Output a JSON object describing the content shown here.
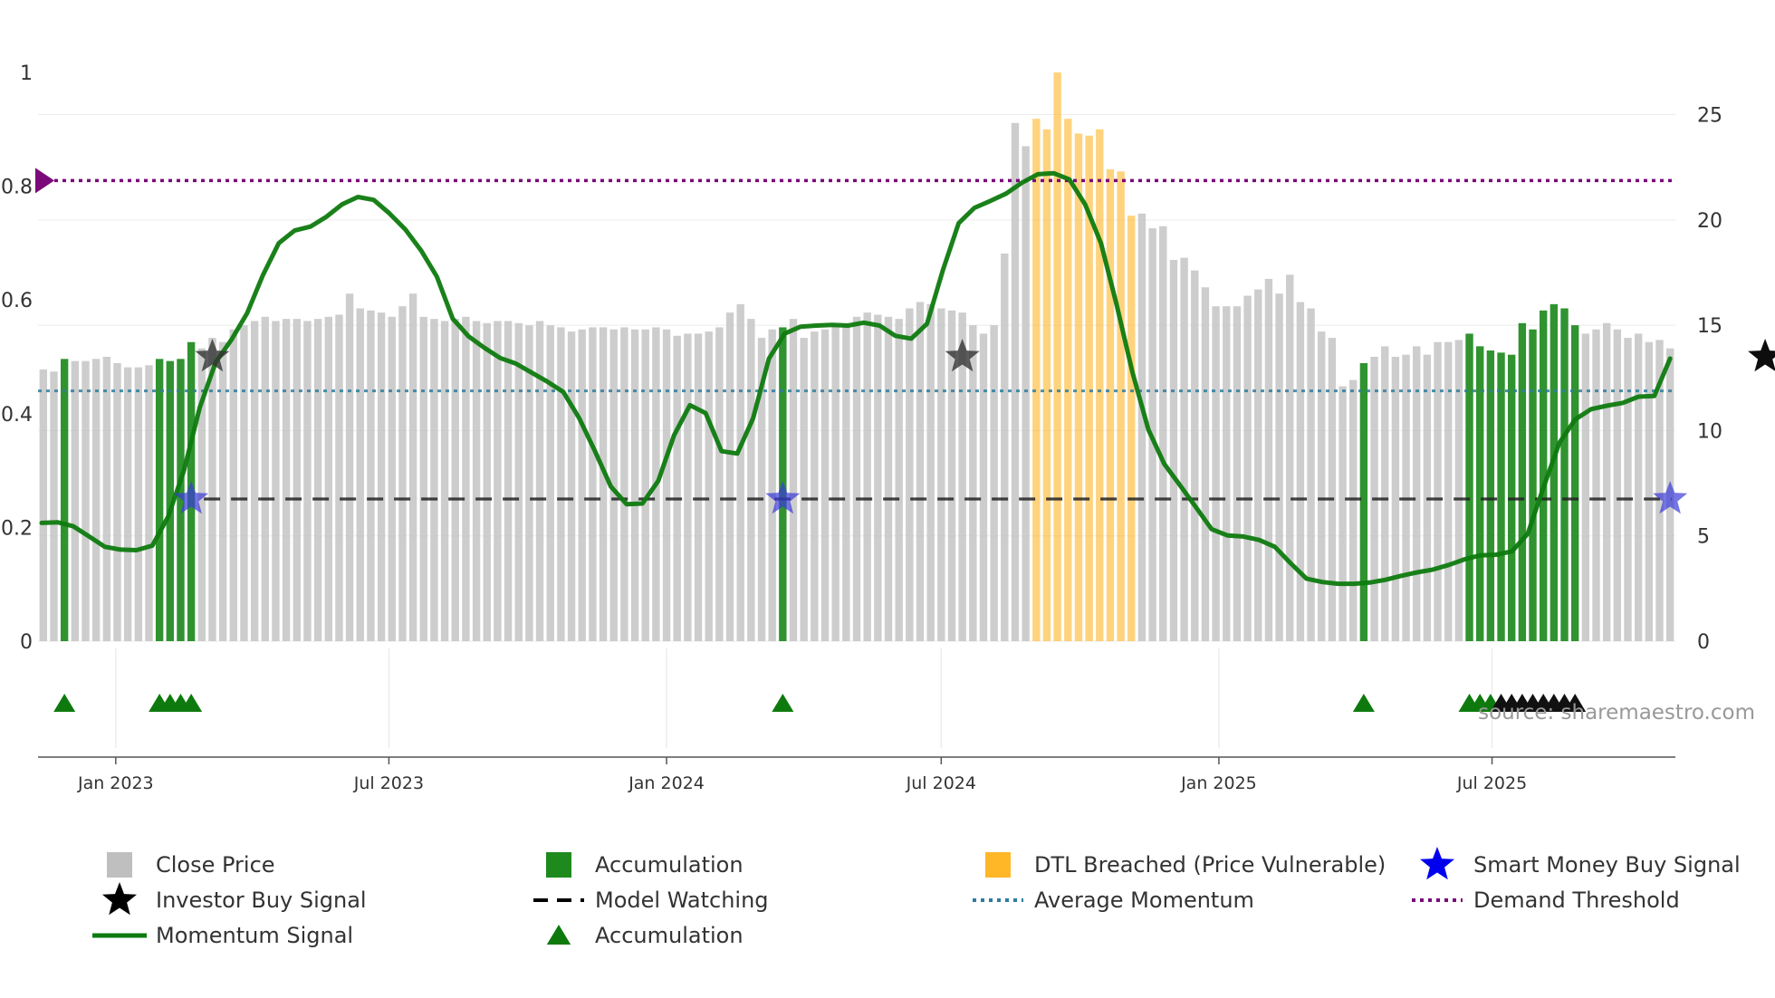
{
  "chart_data": {
    "type": "bar",
    "title": "",
    "source_label": "source: sharemaestro.com",
    "axes": {
      "left": {
        "ylim": [
          0,
          1
        ],
        "ticks": [
          "0",
          "0.2",
          "0.4",
          "0.6",
          "0.8",
          "1"
        ]
      },
      "right": {
        "ylim": [
          0,
          27
        ],
        "ticks": [
          "0",
          "5",
          "10",
          "15",
          "20",
          "25"
        ]
      },
      "x_ticks": [
        "Jan 2023",
        "Jul 2023",
        "Jan 2024",
        "Jul 2024",
        "Jan 2025",
        "Jul 2025"
      ]
    },
    "series_meta": {
      "close_price_points": 164,
      "first_week": "2022-11-14",
      "interval_days": 7
    },
    "close_price": [
      12.9,
      12.8,
      13.4,
      13.3,
      13.3,
      13.4,
      13.5,
      13.2,
      13.0,
      13.0,
      13.1,
      13.4,
      13.3,
      13.4,
      14.2,
      13.9,
      14.4,
      14.2,
      14.8,
      15.0,
      15.2,
      15.4,
      15.2,
      15.3,
      15.3,
      15.2,
      15.3,
      15.4,
      15.5,
      16.5,
      15.8,
      15.7,
      15.6,
      15.4,
      15.9,
      16.5,
      15.4,
      15.3,
      15.2,
      15.3,
      15.4,
      15.2,
      15.1,
      15.2,
      15.2,
      15.1,
      15.0,
      15.2,
      15.0,
      14.9,
      14.7,
      14.8,
      14.9,
      14.9,
      14.8,
      14.9,
      14.8,
      14.8,
      14.9,
      14.8,
      14.5,
      14.6,
      14.6,
      14.7,
      14.9,
      15.6,
      16.0,
      15.3,
      14.4,
      14.8,
      14.9,
      15.3,
      14.4,
      14.7,
      14.8,
      15.0,
      15.0,
      15.4,
      15.6,
      15.5,
      15.4,
      15.3,
      15.8,
      16.1,
      16.0,
      15.8,
      15.7,
      15.6,
      15.0,
      14.6,
      15.0,
      18.4,
      24.6,
      23.5,
      24.8,
      24.3,
      27.0,
      24.8,
      24.1,
      24.0,
      24.3,
      22.4,
      22.3,
      20.2,
      20.3,
      19.6,
      19.7,
      18.1,
      18.2,
      17.6,
      16.8,
      15.9,
      15.9,
      15.9,
      16.4,
      16.7,
      17.2,
      16.5,
      17.4,
      16.1,
      15.8,
      14.7,
      14.4,
      12.1,
      12.4,
      13.2,
      13.5,
      14.0,
      13.5,
      13.6,
      14.0,
      13.6,
      14.2,
      14.2,
      14.3,
      14.6,
      14.0,
      13.8,
      13.7,
      13.6,
      15.1,
      14.8,
      15.7,
      16.0,
      15.8,
      15.0,
      14.6,
      14.8,
      15.1,
      14.8,
      14.4,
      14.6,
      14.2,
      14.3,
      13.9
    ],
    "accumulation_weeks": [
      2,
      11,
      12,
      13,
      14,
      70,
      125,
      135,
      136,
      137,
      138,
      139,
      140,
      141,
      142,
      143,
      144,
      145
    ],
    "dtl_breached_weeks": [
      94,
      95,
      96,
      97,
      98,
      99,
      100,
      101,
      102,
      103
    ],
    "momentum_signal": [
      0.208,
      0.209,
      0.202,
      0.184,
      0.166,
      0.161,
      0.16,
      0.168,
      0.219,
      0.3,
      0.411,
      0.49,
      0.53,
      0.577,
      0.644,
      0.7,
      0.722,
      0.729,
      0.746,
      0.768,
      0.781,
      0.776,
      0.752,
      0.724,
      0.687,
      0.641,
      0.567,
      0.536,
      0.516,
      0.498,
      0.488,
      0.472,
      0.456,
      0.438,
      0.392,
      0.334,
      0.272,
      0.241,
      0.242,
      0.282,
      0.362,
      0.415,
      0.401,
      0.334,
      0.33,
      0.392,
      0.497,
      0.541,
      0.553,
      0.555,
      0.556,
      0.555,
      0.56,
      0.555,
      0.537,
      0.532,
      0.558,
      0.652,
      0.735,
      0.762,
      0.774,
      0.787,
      0.806,
      0.821,
      0.823,
      0.812,
      0.768,
      0.7,
      0.591,
      0.472,
      0.372,
      0.312,
      0.274,
      0.236,
      0.197,
      0.186,
      0.184,
      0.178,
      0.166,
      0.137,
      0.11,
      0.104,
      0.101,
      0.101,
      0.103,
      0.108,
      0.115,
      0.121,
      0.126,
      0.134,
      0.144,
      0.151,
      0.152,
      0.158,
      0.189,
      0.271,
      0.349,
      0.39,
      0.408,
      0.414,
      0.419,
      0.43,
      0.431,
      0.497
    ],
    "model_watching_level": 0.25,
    "average_momentum_level": 0.44,
    "demand_threshold_level": 0.81,
    "investor_buy_signals": [
      {
        "week": 16,
        "level": 0.5
      },
      {
        "week": 87,
        "level": 0.5
      },
      {
        "week": 163,
        "level": 0.5
      }
    ],
    "smart_money_buy_signals": [
      {
        "week": 14,
        "level": 0.25
      },
      {
        "week": 70,
        "level": 0.25
      },
      {
        "week": 154,
        "level": 0.25
      }
    ],
    "green_markers_weeks": [
      2,
      11,
      12,
      13,
      14,
      70,
      125,
      135,
      136,
      137
    ],
    "black_markers_weeks": [
      138,
      139,
      140,
      141,
      142,
      143,
      144,
      145
    ],
    "legend": [
      {
        "key": "close",
        "label": "Close Price",
        "color": "#b8b8b8"
      },
      {
        "key": "accum",
        "label": "Accumulation",
        "color": "#1e8a1e"
      },
      {
        "key": "dtl",
        "label": "DTL Breached (Price Vulnerable)",
        "color": "#ffb627"
      },
      {
        "key": "smart",
        "label": "Smart Money Buy Signal",
        "color": "#0000ee"
      },
      {
        "key": "investor",
        "label": "Investor Buy Signal",
        "color": "#000000"
      },
      {
        "key": "watching",
        "label": "Model Watching",
        "color": "#000000"
      },
      {
        "key": "avgmom",
        "label": "Average Momentum",
        "color": "#2e7d9e"
      },
      {
        "key": "demand",
        "label": "Demand Threshold",
        "color": "#7a0a7a"
      },
      {
        "key": "momentum",
        "label": "Momentum Signal",
        "color": "#0e7a0e"
      },
      {
        "key": "accum-marker",
        "label": "Accumulation",
        "color": "#0e7a0e"
      }
    ]
  }
}
